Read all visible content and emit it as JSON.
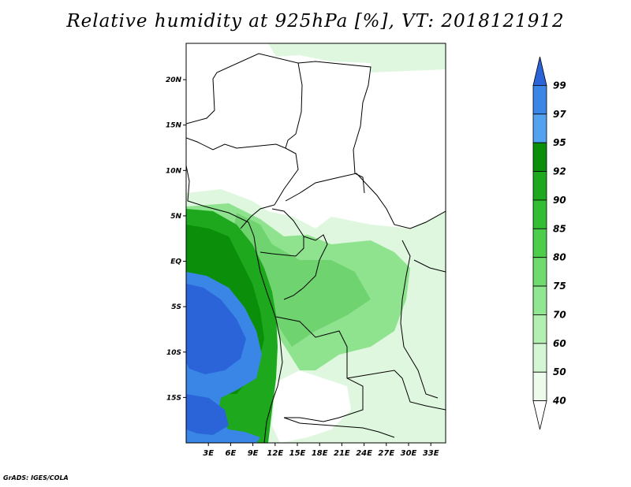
{
  "title": "Relative humidity at 925hPa [%], VT: 2018121912",
  "credit": "GrADS: IGES/COLA",
  "map": {
    "lon_range": [
      0,
      35
    ],
    "lat_range": [
      -20,
      24
    ],
    "lon_labels": [
      "3E",
      "6E",
      "9E",
      "12E",
      "15E",
      "18E",
      "21E",
      "24E",
      "27E",
      "30E",
      "33E"
    ],
    "lon_values": [
      3,
      6,
      9,
      12,
      15,
      18,
      21,
      24,
      27,
      30,
      33
    ],
    "lat_labels": [
      "20N",
      "15N",
      "10N",
      "5N",
      "EQ",
      "5S",
      "10S",
      "15S"
    ],
    "lat_values": [
      20,
      15,
      10,
      5,
      0,
      -5,
      -10,
      -15
    ]
  },
  "legend": {
    "levels": [
      "99",
      "97",
      "95",
      "92",
      "90",
      "85",
      "80",
      "75",
      "70",
      "60",
      "50",
      "40"
    ],
    "colors": [
      "#2b64d8",
      "#3a86e6",
      "#52a2f0",
      "#0b8f0b",
      "#1ea81e",
      "#33bd33",
      "#4ccd4c",
      "#6fdb6f",
      "#91e691",
      "#b3efb3",
      "#d4f6d4",
      "#ecfbec"
    ]
  }
}
